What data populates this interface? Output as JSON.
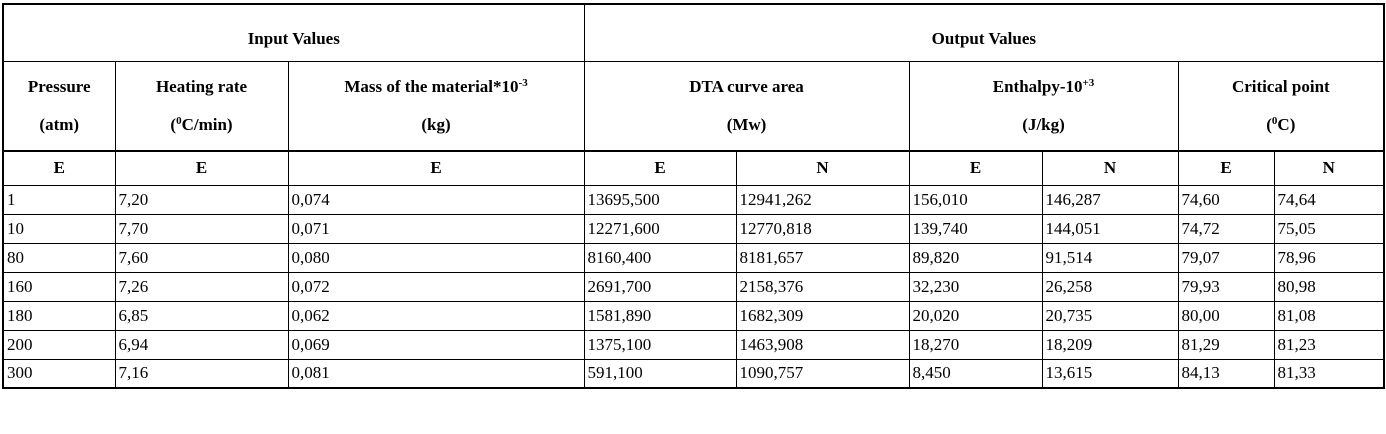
{
  "table": {
    "group_headers": [
      "Input Values",
      "Output Values"
    ],
    "params": [
      {
        "name": "Pressure",
        "unit": "(atm)",
        "name_sup": "",
        "unit_pre": "",
        "unit_sup": "",
        "unit_post": ""
      },
      {
        "name": "Heating rate",
        "name_sup": "",
        "unit_pre": "(",
        "unit_sup": "0",
        "unit_post": "C/min)"
      },
      {
        "name": "Mass of the material*10",
        "name_sup": "-3",
        "unit": "(kg)"
      },
      {
        "name": "DTA curve area",
        "name_sup": "",
        "unit": "(Mw)"
      },
      {
        "name": "Enthalpy-10",
        "name_sup": "+3",
        "unit": "(J/kg)"
      },
      {
        "name": "Critical point",
        "name_sup": "",
        "unit_pre": "(",
        "unit_sup": "0",
        "unit_post": "C)"
      }
    ],
    "sub_headers": [
      "E",
      "E",
      "E",
      "E",
      "N",
      "E",
      "N",
      "E",
      "N"
    ],
    "rows": [
      [
        "1",
        "7,20",
        "0,074",
        "13695,500",
        "12941,262",
        "156,010",
        "146,287",
        "74,60",
        "74,64"
      ],
      [
        "10",
        "7,70",
        "0,071",
        "12271,600",
        "12770,818",
        "139,740",
        "144,051",
        "74,72",
        "75,05"
      ],
      [
        "80",
        "7,60",
        "0,080",
        "8160,400",
        "8181,657",
        "89,820",
        "91,514",
        "79,07",
        "78,96"
      ],
      [
        "160",
        "7,26",
        "0,072",
        "2691,700",
        "2158,376",
        "32,230",
        "26,258",
        "79,93",
        "80,98"
      ],
      [
        "180",
        "6,85",
        "0,062",
        "1581,890",
        "1682,309",
        "20,020",
        "20,735",
        "80,00",
        "81,08"
      ],
      [
        "200",
        "6,94",
        "0,069",
        "1375,100",
        "1463,908",
        "18,270",
        "18,209",
        "81,29",
        "81,23"
      ],
      [
        "300",
        "7,16",
        "0,081",
        "591,100",
        "1090,757",
        "8,450",
        "13,615",
        "84,13",
        "81,33"
      ]
    ]
  }
}
